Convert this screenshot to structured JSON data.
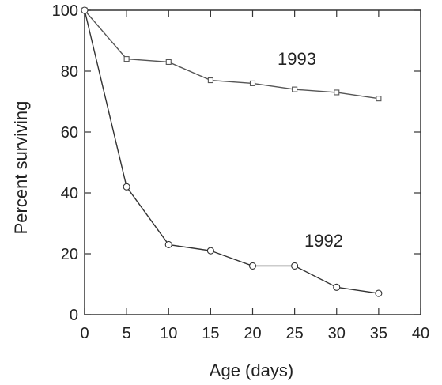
{
  "chart_data": {
    "type": "line",
    "title": "",
    "xlabel": "Age (days)",
    "ylabel": "Percent surviving",
    "xlim": [
      0,
      40
    ],
    "ylim": [
      0,
      100
    ],
    "xticks": [
      0,
      5,
      10,
      15,
      20,
      25,
      30,
      35,
      40
    ],
    "yticks": [
      0,
      20,
      40,
      60,
      80,
      100
    ],
    "xtick_labels": [
      "0",
      "5",
      "10",
      "15",
      "20",
      "25",
      "30",
      "35",
      "40"
    ],
    "ytick_labels": [
      "0",
      "20",
      "40",
      "60",
      "80",
      "100"
    ],
    "grid": false,
    "legend": "none",
    "series": [
      {
        "name": "1993",
        "marker": "square",
        "color": "#555555",
        "x": [
          0,
          5,
          10,
          15,
          20,
          25,
          30,
          35
        ],
        "y": [
          100,
          84,
          83,
          77,
          76,
          74,
          73,
          71
        ]
      },
      {
        "name": "1992",
        "marker": "circle",
        "color": "#333333",
        "x": [
          0,
          5,
          10,
          15,
          20,
          25,
          30,
          35
        ],
        "y": [
          100,
          42,
          23,
          21,
          16,
          16,
          9,
          7
        ]
      }
    ]
  }
}
